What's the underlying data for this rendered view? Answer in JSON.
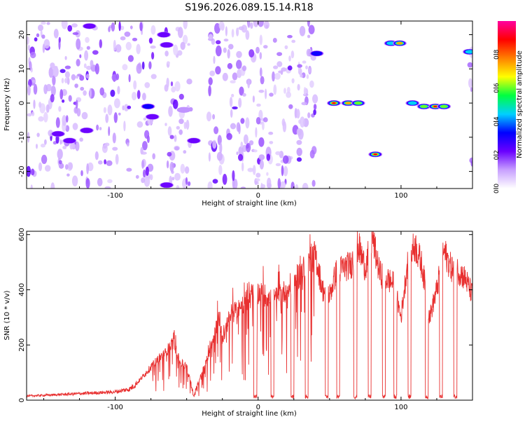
{
  "title": "S196.2026.089.15.14.R18",
  "colors": {
    "line": "#e83030",
    "frame": "#000000",
    "background": "#ffffff"
  },
  "chart_data": [
    {
      "type": "heatmap",
      "title": "S196.2026.089.15.14.R18",
      "xlabel": "Height of straight line (km)",
      "ylabel": "Frequency (Hz)",
      "xlim": [
        -162,
        150
      ],
      "ylim": [
        -25,
        24
      ],
      "xticks": [
        -100,
        0,
        100
      ],
      "xtick_labels": [
        "-100",
        "0",
        "100"
      ],
      "yticks": [
        -20,
        -10,
        0,
        10,
        20
      ],
      "ytick_labels": [
        "-20",
        "-10",
        "0",
        "10",
        "20"
      ],
      "colorbar": {
        "label": "Normalized spectral amplitude",
        "range": [
          0,
          1
        ],
        "ticks": [
          0.0,
          0.2,
          0.4,
          0.6,
          0.8
        ],
        "tick_labels": [
          "0.0",
          "0.2",
          "0.4",
          "0.6",
          "0.8"
        ],
        "colormap": [
          "#ffffff",
          "#c8a0ff",
          "#6a00ff",
          "#0000ff",
          "#00d0ff",
          "#00ff40",
          "#ffff00",
          "#ff8000",
          "#ff0000",
          "#ff00a0"
        ]
      },
      "background_noise_gaps_km": [
        [
          -73,
          -65
        ],
        [
          -47,
          -35
        ],
        [
          40,
          148
        ]
      ],
      "features": [
        {
          "x": -140,
          "y": -9,
          "amp": 0.22
        },
        {
          "x": -132,
          "y": -11,
          "amp": 0.3
        },
        {
          "x": -120,
          "y": -8,
          "amp": 0.22
        },
        {
          "x": -118,
          "y": 22.5,
          "amp": 0.25
        },
        {
          "x": -77,
          "y": -1,
          "amp": 0.35
        },
        {
          "x": -74,
          "y": -4,
          "amp": 0.25
        },
        {
          "x": -66,
          "y": 20,
          "amp": 0.28
        },
        {
          "x": -64,
          "y": 17,
          "amp": 0.22
        },
        {
          "x": -64,
          "y": -24,
          "amp": 0.22
        },
        {
          "x": -52,
          "y": -2,
          "amp": 0.18
        },
        {
          "x": -45,
          "y": -11,
          "amp": 0.3
        },
        {
          "x": 41,
          "y": 14.5,
          "amp": 0.35
        },
        {
          "x": 53,
          "y": 0,
          "amp": 0.9
        },
        {
          "x": 63,
          "y": 0,
          "amp": 0.75
        },
        {
          "x": 70,
          "y": 0,
          "amp": 0.7
        },
        {
          "x": 82,
          "y": -15,
          "amp": 0.9
        },
        {
          "x": 93,
          "y": 17.5,
          "amp": 0.55
        },
        {
          "x": 99,
          "y": 17.5,
          "amp": 0.85
        },
        {
          "x": 108,
          "y": 0,
          "amp": 0.45
        },
        {
          "x": 116,
          "y": -1,
          "amp": 0.6
        },
        {
          "x": 124,
          "y": -1,
          "amp": 0.9
        },
        {
          "x": 130,
          "y": -1,
          "amp": 0.7
        },
        {
          "x": 148,
          "y": 15,
          "amp": 0.55
        }
      ]
    },
    {
      "type": "line",
      "xlabel": "Height of straight line (km)",
      "ylabel": "SNR (10 * v/v)",
      "xlim": [
        -162,
        150
      ],
      "ylim": [
        0,
        612
      ],
      "xticks": [
        -100,
        0,
        100
      ],
      "xtick_labels": [
        "-100",
        "0",
        "100"
      ],
      "yticks": [
        0,
        200,
        400,
        600
      ],
      "ytick_labels": [
        "0",
        "200",
        "400",
        "600"
      ],
      "series": [
        {
          "name": "SNR",
          "x": [
            -162,
            -140,
            -120,
            -100,
            -90,
            -85,
            -80,
            -75,
            -70,
            -65,
            -60,
            -57,
            -55,
            -50,
            -47,
            -45,
            -40,
            -35,
            -30,
            -27,
            -25,
            -20,
            -15,
            -10,
            -5,
            0,
            5,
            10,
            15,
            20,
            25,
            30,
            35,
            40,
            45,
            50,
            55,
            60,
            65,
            70,
            75,
            80,
            85,
            90,
            95,
            100,
            105,
            110,
            115,
            120,
            125,
            130,
            135,
            140,
            145,
            150
          ],
          "y": [
            15,
            20,
            25,
            30,
            40,
            60,
            90,
            120,
            150,
            170,
            210,
            180,
            140,
            120,
            60,
            15,
            90,
            160,
            260,
            300,
            220,
            300,
            330,
            350,
            380,
            390,
            380,
            360,
            380,
            400,
            430,
            460,
            500,
            530,
            400,
            380,
            470,
            480,
            490,
            560,
            480,
            590,
            460,
            440,
            420,
            300,
            520,
            560,
            480,
            300,
            400,
            540,
            480,
            470,
            440,
            380
          ],
          "dropouts_km": [
            -2,
            10,
            24,
            34,
            48,
            56,
            68,
            78,
            88,
            96,
            106,
            118,
            128,
            138
          ]
        }
      ]
    }
  ]
}
